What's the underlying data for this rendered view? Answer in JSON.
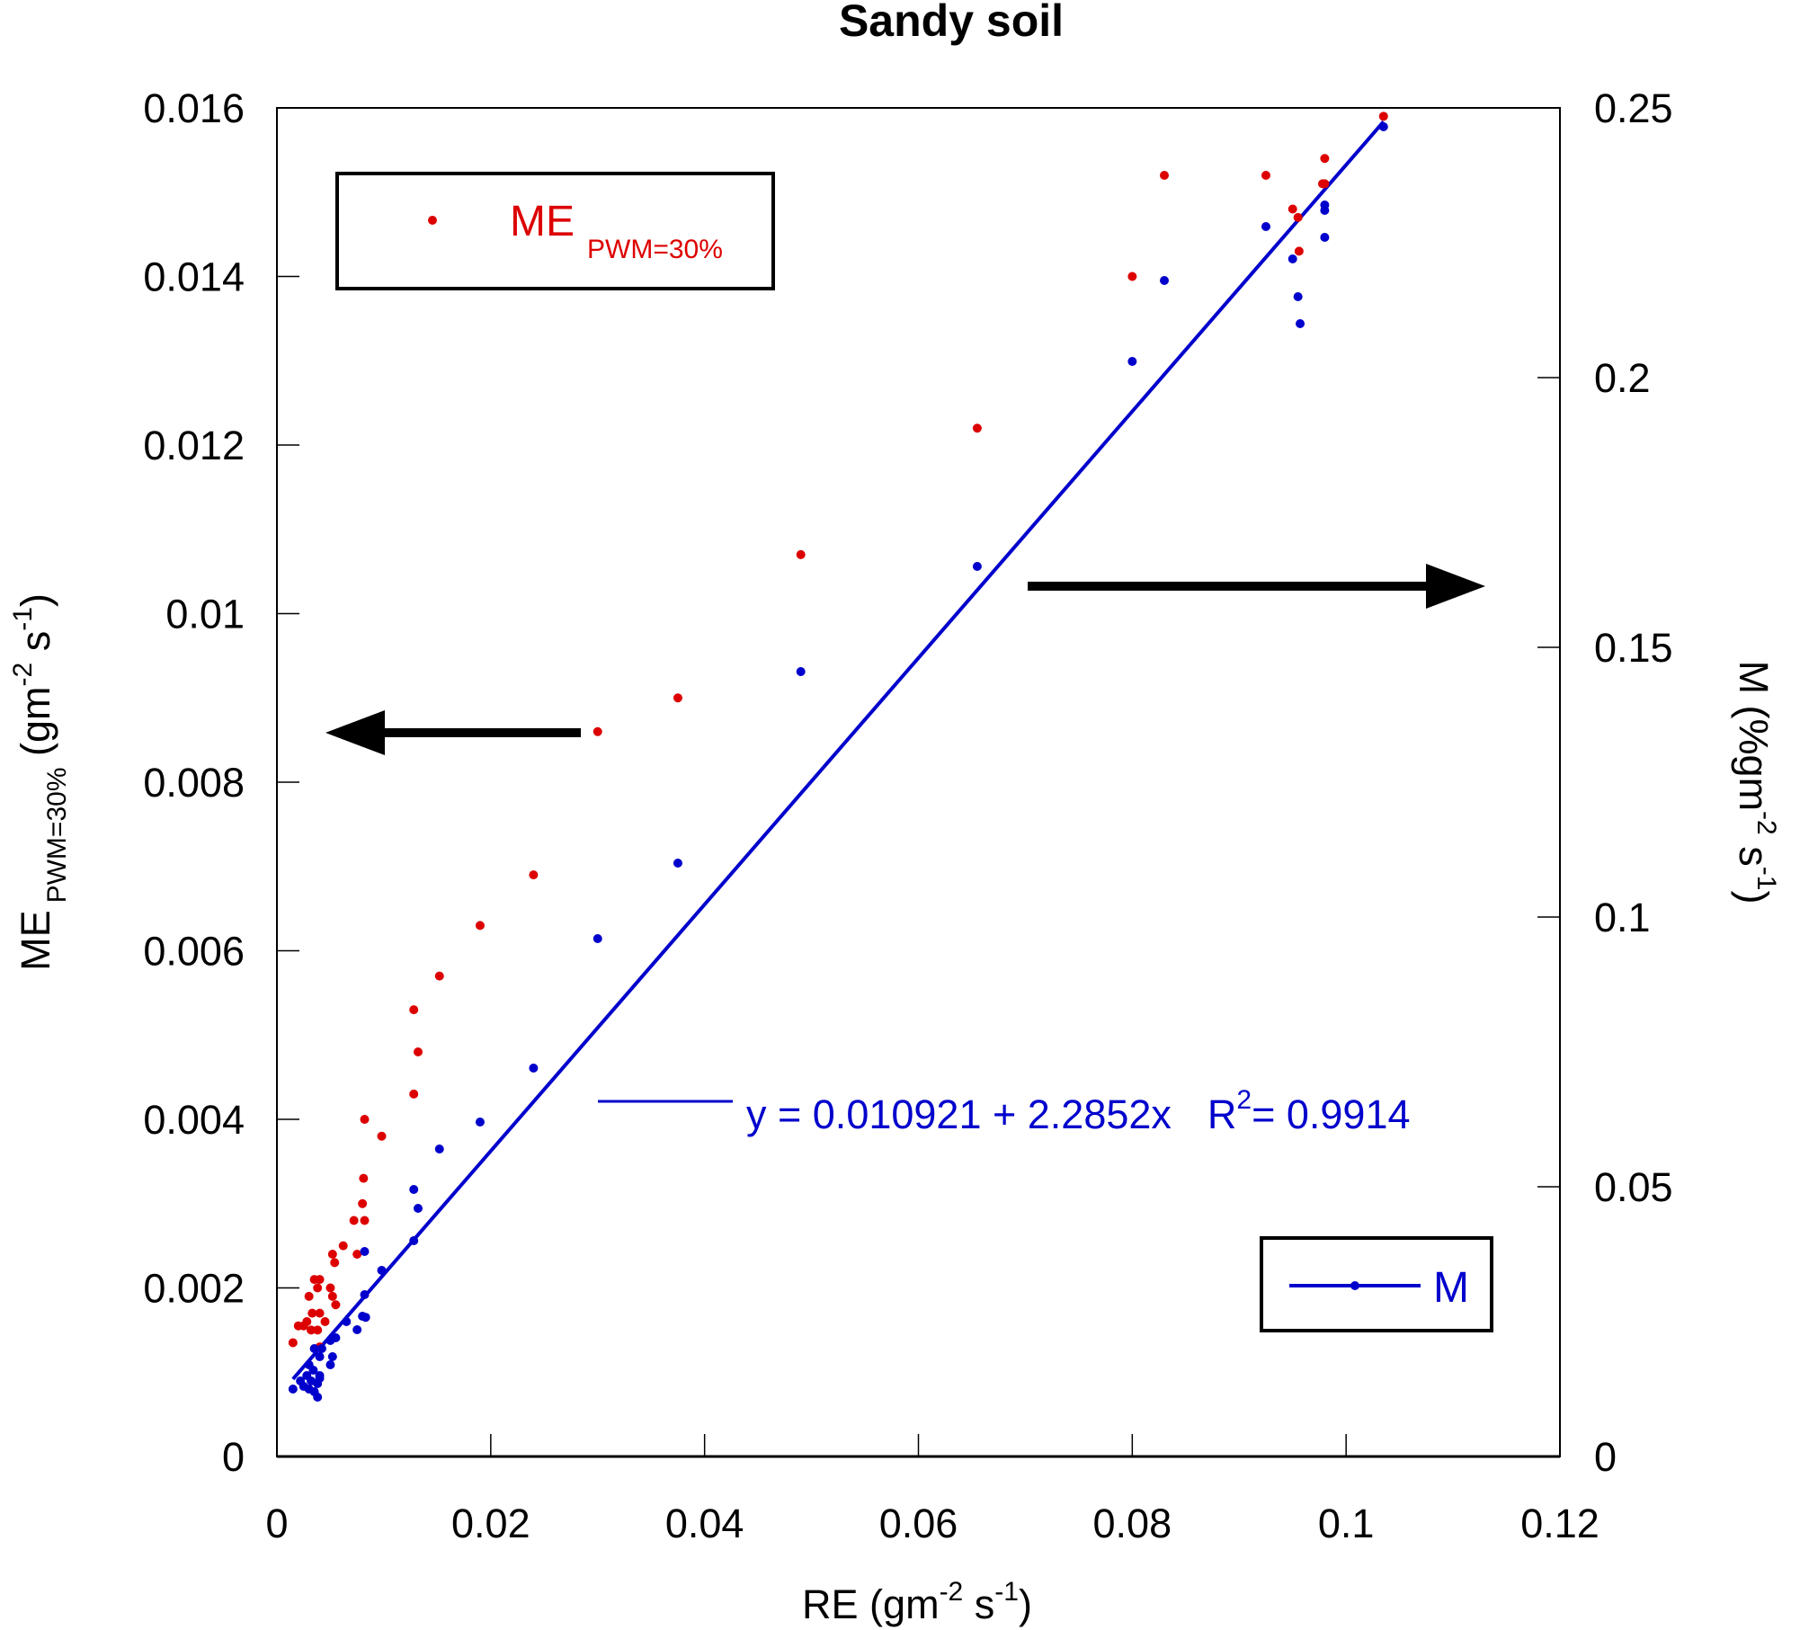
{
  "chart_data": {
    "type": "scatter",
    "title": "Sandy soil",
    "xlabel": "RE (gm-2 s-1)",
    "xlabel_parts": {
      "main": "RE (gm",
      "sup1": "-2",
      "mid": " s",
      "sup2": "-1",
      "end": ")"
    },
    "ylabel_left": "ME PWM=30% (gm-2 s-1)",
    "ylabel_left_parts": {
      "main": "ME",
      "sub": "PWM=30%",
      "unit_main": " (gm",
      "sup1": "-2",
      "mid": " s",
      "sup2": "-1",
      "end": ")"
    },
    "ylabel_right": "M (%gm-2 s-1)",
    "ylabel_right_parts": {
      "main": "M (%gm",
      "sup1": "-2",
      "mid": " s",
      "sup2": "-1",
      "end": ")"
    },
    "xlim": [
      0,
      0.12
    ],
    "ylim_left": [
      0,
      0.016
    ],
    "ylim_right": [
      0,
      0.25
    ],
    "xticks": [
      "0",
      "0.02",
      "0.04",
      "0.06",
      "0.08",
      "0.1",
      "0.12"
    ],
    "xtick_values": [
      0,
      0.02,
      0.04,
      0.06,
      0.08,
      0.1,
      0.12
    ],
    "yticks_left": [
      "0",
      "0.002",
      "0.004",
      "0.006",
      "0.008",
      "0.01",
      "0.012",
      "0.014",
      "0.016"
    ],
    "ytick_values_left": [
      0,
      0.002,
      0.004,
      0.006,
      0.008,
      0.01,
      0.012,
      0.014,
      0.016
    ],
    "yticks_right": [
      "0",
      "0.05",
      "0.1",
      "0.15",
      "0.2",
      "0.25"
    ],
    "ytick_values_right": [
      0,
      0.05,
      0.1,
      0.15,
      0.2,
      0.25
    ],
    "grid": false,
    "series": [
      {
        "name": "ME PWM=30%",
        "axis": "left",
        "color": "#dd0000",
        "legend": {
          "main": "ME",
          "sub": "PWM=30%",
          "placement": "top-left"
        },
        "points": [
          [
            0.1035,
            0.0159
          ],
          [
            0.098,
            0.0154
          ],
          [
            0.098,
            0.0151
          ],
          [
            0.0978,
            0.0151
          ],
          [
            0.095,
            0.0148
          ],
          [
            0.0955,
            0.0147
          ],
          [
            0.0956,
            0.0143
          ],
          [
            0.0925,
            0.0152
          ],
          [
            0.083,
            0.0152
          ],
          [
            0.08,
            0.014
          ],
          [
            0.0655,
            0.0122
          ],
          [
            0.049,
            0.0107
          ],
          [
            0.0375,
            0.009
          ],
          [
            0.03,
            0.0086
          ],
          [
            0.024,
            0.0069
          ],
          [
            0.019,
            0.0063
          ],
          [
            0.0152,
            0.0057
          ],
          [
            0.0132,
            0.0048
          ],
          [
            0.0128,
            0.0053
          ],
          [
            0.0128,
            0.0043
          ],
          [
            0.0098,
            0.0038
          ],
          [
            0.0082,
            0.004
          ],
          [
            0.0081,
            0.0033
          ],
          [
            0.008,
            0.003
          ],
          [
            0.0082,
            0.0028
          ],
          [
            0.0072,
            0.0028
          ],
          [
            0.0075,
            0.0024
          ],
          [
            0.0062,
            0.0025
          ],
          [
            0.0052,
            0.0024
          ],
          [
            0.0054,
            0.0023
          ],
          [
            0.005,
            0.002
          ],
          [
            0.0052,
            0.0019
          ],
          [
            0.0055,
            0.0018
          ],
          [
            0.0035,
            0.0021
          ],
          [
            0.004,
            0.0021
          ],
          [
            0.0038,
            0.002
          ],
          [
            0.003,
            0.0019
          ],
          [
            0.0033,
            0.0017
          ],
          [
            0.004,
            0.0017
          ],
          [
            0.0028,
            0.0016
          ],
          [
            0.0032,
            0.0015
          ],
          [
            0.0038,
            0.0015
          ],
          [
            0.0045,
            0.0016
          ],
          [
            0.002,
            0.00155
          ],
          [
            0.0025,
            0.00155
          ],
          [
            0.0015,
            0.00135
          ],
          [
            0.004,
            0.0013
          ]
        ]
      },
      {
        "name": "M",
        "axis": "right",
        "color": "#0000cc",
        "legend": {
          "main": "M",
          "placement": "bottom-right"
        },
        "points": [
          [
            0.1035,
            0.2465
          ],
          [
            0.098,
            0.232
          ],
          [
            0.098,
            0.231
          ],
          [
            0.098,
            0.226
          ],
          [
            0.095,
            0.222
          ],
          [
            0.0955,
            0.215
          ],
          [
            0.0957,
            0.21
          ],
          [
            0.0925,
            0.228
          ],
          [
            0.083,
            0.218
          ],
          [
            0.08,
            0.203
          ],
          [
            0.0655,
            0.165
          ],
          [
            0.049,
            0.1455
          ],
          [
            0.0375,
            0.11
          ],
          [
            0.03,
            0.096
          ],
          [
            0.024,
            0.072
          ],
          [
            0.019,
            0.062
          ],
          [
            0.0152,
            0.057
          ],
          [
            0.0132,
            0.046
          ],
          [
            0.0128,
            0.0495
          ],
          [
            0.0128,
            0.04
          ],
          [
            0.0098,
            0.0345
          ],
          [
            0.0082,
            0.038
          ],
          [
            0.0082,
            0.03
          ],
          [
            0.008,
            0.026
          ],
          [
            0.0083,
            0.0258
          ],
          [
            0.0075,
            0.0235
          ],
          [
            0.0065,
            0.025
          ],
          [
            0.0055,
            0.022
          ],
          [
            0.005,
            0.0215
          ],
          [
            0.0052,
            0.0185
          ],
          [
            0.005,
            0.017
          ],
          [
            0.0042,
            0.02
          ],
          [
            0.0035,
            0.02
          ],
          [
            0.004,
            0.0185
          ],
          [
            0.003,
            0.017
          ],
          [
            0.0034,
            0.016
          ],
          [
            0.0028,
            0.015
          ],
          [
            0.0032,
            0.014
          ],
          [
            0.004,
            0.015
          ],
          [
            0.0022,
            0.014
          ],
          [
            0.0025,
            0.013
          ],
          [
            0.003,
            0.0125
          ],
          [
            0.0038,
            0.0135
          ],
          [
            0.0015,
            0.0125
          ],
          [
            0.0035,
            0.012
          ],
          [
            0.0038,
            0.011
          ],
          [
            0.004,
            0.0145
          ]
        ],
        "fit": {
          "intercept": 0.010921,
          "slope": 2.2852,
          "r2": 0.9914,
          "x_range": [
            0.0015,
            0.1035
          ]
        }
      }
    ],
    "annotations": {
      "equation": {
        "y_part": "y = 0.010921 + 2.2852x",
        "r_label": "R",
        "r_sup": "2",
        "r_value": "= 0.9914"
      },
      "arrows": [
        {
          "direction": "left",
          "meaning": "points to left axis (ME)"
        },
        {
          "direction": "right",
          "meaning": "points to right axis (M)"
        }
      ]
    }
  }
}
